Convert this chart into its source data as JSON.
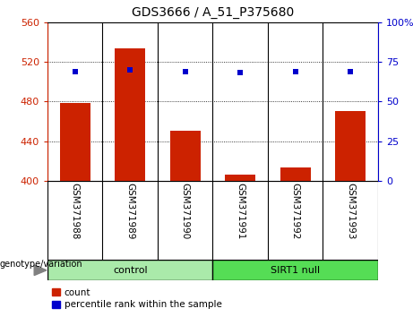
{
  "title": "GDS3666 / A_51_P375680",
  "samples": [
    "GSM371988",
    "GSM371989",
    "GSM371990",
    "GSM371991",
    "GSM371992",
    "GSM371993"
  ],
  "counts": [
    478,
    534,
    450,
    406,
    413,
    470
  ],
  "percentile_ranks": [
    69,
    70,
    69,
    68,
    69,
    69
  ],
  "bar_color": "#cc2200",
  "dot_color": "#0000cc",
  "ylim_left": [
    400,
    560
  ],
  "yticks_left": [
    400,
    440,
    480,
    520,
    560
  ],
  "ylim_right": [
    0,
    100
  ],
  "yticks_right": [
    0,
    25,
    50,
    75,
    100
  ],
  "ylabel_left_color": "#cc2200",
  "ylabel_right_color": "#0000cc",
  "label_bg_color": "#c8c8c8",
  "plot_bg": "#ffffff",
  "legend_count_label": "count",
  "legend_pct_label": "percentile rank within the sample",
  "annotation_label": "genotype/variation",
  "control_color": "#aaeaaa",
  "sirt1_color": "#55dd55",
  "group_divider": 3,
  "n_samples": 6
}
